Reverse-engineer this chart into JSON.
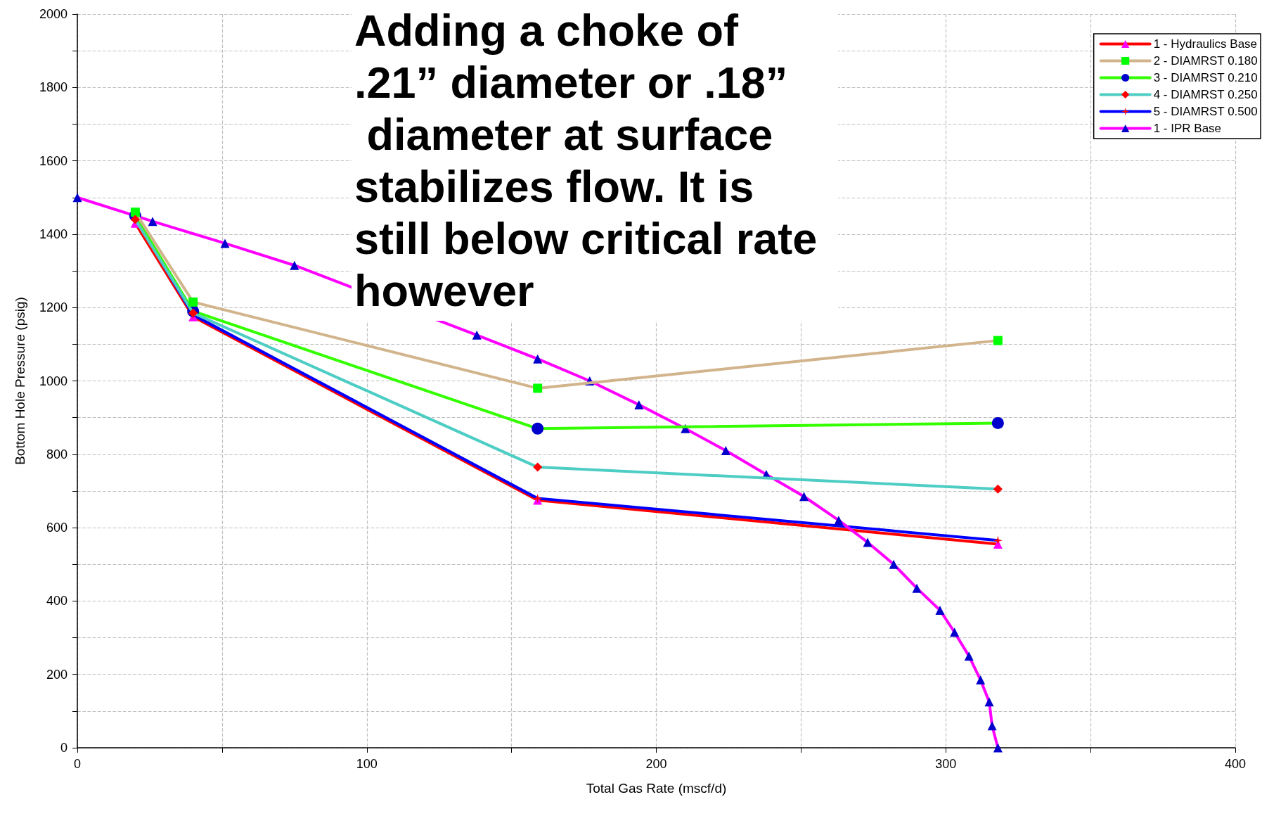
{
  "chart_data": {
    "type": "line",
    "xlabel": "Total Gas Rate (mscf/d)",
    "ylabel": "Bottom Hole Pressure (psig)",
    "xlim": [
      0,
      400
    ],
    "xticks": [
      0,
      {
        "value": 50,
        "label": null
      },
      100,
      {
        "value": 150,
        "label": null
      },
      200,
      {
        "value": 250,
        "label": null
      },
      300,
      {
        "value": 350,
        "label": null
      },
      400
    ],
    "ylim": [
      0,
      2000
    ],
    "yticks": [
      0,
      {
        "value": 100,
        "label": null
      },
      200,
      {
        "value": 300,
        "label": null
      },
      400,
      {
        "value": 500,
        "label": null
      },
      600,
      {
        "value": 700,
        "label": null
      },
      800,
      {
        "value": 900,
        "label": null
      },
      1000,
      {
        "value": 1100,
        "label": null
      },
      1200,
      {
        "value": 1300,
        "label": null
      },
      1400,
      {
        "value": 1500,
        "label": null
      },
      1600,
      {
        "value": 1700,
        "label": null
      },
      1800,
      {
        "value": 1900,
        "label": null
      },
      2000
    ],
    "grid": true,
    "legend": "top right",
    "line_style": "solid",
    "series": [
      {
        "name": "1 - Hydraulics Base",
        "color": "#ff0000",
        "marker": "triangle",
        "colors": [
          "#ff00ff",
          "#ff00ff",
          "#ff00ff",
          "#ff00ff"
        ],
        "x": [
          20,
          40,
          159,
          318
        ],
        "values": [
          1430,
          1175,
          675,
          555
        ]
      },
      {
        "name": "2 - DIAMRST 0.180",
        "color": "#d2b48c",
        "marker": "square",
        "colors": [
          "#00ff00",
          "#00ff00",
          "#00ff00",
          "#00ff00"
        ],
        "x": [
          20,
          40,
          159,
          318
        ],
        "values": [
          1460,
          1215,
          980,
          1110
        ]
      },
      {
        "name": "3 - DIAMRST 0.210",
        "color": "#33ff00",
        "marker": "circle",
        "colors": [
          "#0000cc",
          "#0000cc",
          "#0000cc",
          "#0000cc"
        ],
        "x": [
          20,
          40,
          159,
          318
        ],
        "values": [
          1450,
          1190,
          870,
          885
        ]
      },
      {
        "name": "4 - DIAMRST 0.250",
        "color": "#4ecdc4",
        "marker": "diamond",
        "colors": [
          "#ff0000",
          "#ff0000",
          "#ff0000",
          "#ff0000"
        ],
        "x": [
          20,
          40,
          159,
          318
        ],
        "values": [
          1440,
          1185,
          765,
          705
        ]
      },
      {
        "name": "5 - DIAMRST 0.500",
        "color": "#0000ff",
        "marker": "star",
        "colors": [
          "#ff0000",
          "#ff0000",
          "#ff0000",
          "#ff0000"
        ],
        "x": [
          20,
          40,
          159,
          318
        ],
        "values": [
          1445,
          1180,
          680,
          565
        ]
      },
      {
        "name": "1 - IPR Base",
        "color": "#ff00ff",
        "marker": "triangle",
        "colors": [
          "#0000cc",
          "#0000cc",
          "#0000cc",
          "#0000cc",
          "#0000cc",
          "#0000cc",
          "#0000cc",
          "#0000cc",
          "#0000cc",
          "#0000cc",
          "#0000cc",
          "#0000cc",
          "#0000cc",
          "#0000cc",
          "#0000cc",
          "#0000cc",
          "#0000cc",
          "#0000cc",
          "#0000cc",
          "#0000cc",
          "#0000cc",
          "#0000cc",
          "#0000cc"
        ],
        "x": [
          0,
          26,
          51,
          75,
          138,
          159,
          177,
          194,
          210,
          224,
          238,
          251,
          263,
          273,
          282,
          290,
          298,
          303,
          308,
          312,
          315,
          316,
          318
        ],
        "values": [
          1500,
          1435,
          1375,
          1315,
          1125,
          1060,
          1000,
          935,
          870,
          810,
          745,
          685,
          620,
          560,
          500,
          435,
          375,
          315,
          250,
          185,
          125,
          60,
          0
        ]
      }
    ],
    "annotations": [
      "Adding a choke of .21” diameter or .18” diameter at surface stabilizes flow. It is still below critical rate however"
    ]
  }
}
